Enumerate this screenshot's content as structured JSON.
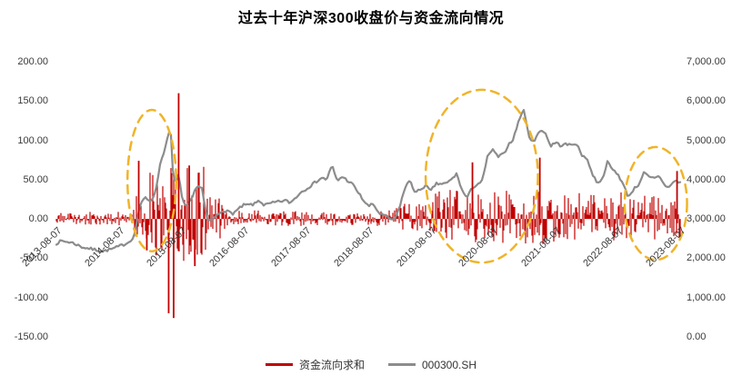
{
  "chart": {
    "title": "过去十年沪深300收盘价与资金流向情况"
  },
  "chart_data": {
    "type": "line",
    "title": "过去十年沪深300收盘价与资金流向情况",
    "subtitle": "",
    "grid": false,
    "legend_position": "bottom",
    "x_tick_labels": [
      "2013-08-07",
      "2014-08-07",
      "2015-08-07",
      "2016-08-07",
      "2017-08-07",
      "2018-08-07",
      "2019-08-07",
      "2020-08-07",
      "2021-08-07",
      "2022-08-07",
      "2023-08-07"
    ],
    "left_axis": {
      "min": -150,
      "max": 200,
      "tick_values": [
        200,
        150,
        100,
        50,
        0,
        -50,
        -100,
        -150
      ],
      "tick_labels": [
        "200.00",
        "150.00",
        "100.00",
        "50.00",
        "0.00",
        "-50.00",
        "-100.00",
        "-150.00"
      ]
    },
    "right_axis": {
      "min": 0,
      "max": 7000,
      "tick_values": [
        7000,
        6000,
        5000,
        4000,
        3000,
        2000,
        1000,
        0
      ],
      "tick_labels": [
        "7,000.00",
        "6,000.00",
        "5,000.00",
        "4,000.00",
        "3,000.00",
        "2,000.00",
        "1,000.00",
        "0.00"
      ]
    },
    "series": [
      {
        "name": "资金流向求和",
        "type": "bar",
        "axis": "left",
        "color": "#C00000",
        "noise_seed": 42,
        "envelope_segments": [
          [
            0.0,
            0.12,
            9,
            8
          ],
          [
            0.12,
            0.15,
            35,
            25
          ],
          [
            0.15,
            0.24,
            70,
            55
          ],
          [
            0.24,
            0.27,
            32,
            28
          ],
          [
            0.27,
            0.545,
            11,
            9
          ],
          [
            0.545,
            0.6,
            20,
            16
          ],
          [
            0.6,
            0.7,
            38,
            30
          ],
          [
            0.7,
            0.78,
            36,
            32
          ],
          [
            0.78,
            0.93,
            34,
            30
          ],
          [
            0.93,
            1.0,
            30,
            26
          ]
        ],
        "spikes": [
          [
            0.132,
            74
          ],
          [
            0.145,
            -40
          ],
          [
            0.18,
            -120
          ],
          [
            0.188,
            -126
          ],
          [
            0.196,
            160
          ],
          [
            0.213,
            68
          ],
          [
            0.222,
            -60
          ],
          [
            0.667,
            72
          ],
          [
            0.775,
            78
          ],
          [
            0.995,
            61
          ]
        ]
      },
      {
        "name": "000300.SH",
        "type": "line",
        "axis": "right",
        "color": "#8C8C8C",
        "noise_seed": 7,
        "jitter": 35,
        "anchors": [
          [
            0.0,
            2380
          ],
          [
            0.008,
            2440
          ],
          [
            0.025,
            2400
          ],
          [
            0.042,
            2280
          ],
          [
            0.058,
            2230
          ],
          [
            0.075,
            2180
          ],
          [
            0.092,
            2250
          ],
          [
            0.108,
            2350
          ],
          [
            0.117,
            2420
          ],
          [
            0.125,
            2580
          ],
          [
            0.133,
            3300
          ],
          [
            0.142,
            3550
          ],
          [
            0.15,
            3460
          ],
          [
            0.158,
            3620
          ],
          [
            0.167,
            4450
          ],
          [
            0.175,
            4840
          ],
          [
            0.183,
            5350
          ],
          [
            0.186,
            4300
          ],
          [
            0.19,
            3900
          ],
          [
            0.196,
            4150
          ],
          [
            0.202,
            3450
          ],
          [
            0.208,
            3300
          ],
          [
            0.217,
            3500
          ],
          [
            0.225,
            3850
          ],
          [
            0.233,
            3800
          ],
          [
            0.242,
            2950
          ],
          [
            0.25,
            2980
          ],
          [
            0.267,
            3230
          ],
          [
            0.283,
            3140
          ],
          [
            0.3,
            3350
          ],
          [
            0.317,
            3370
          ],
          [
            0.325,
            3480
          ],
          [
            0.333,
            3350
          ],
          [
            0.35,
            3420
          ],
          [
            0.367,
            3470
          ],
          [
            0.375,
            3410
          ],
          [
            0.392,
            3680
          ],
          [
            0.408,
            3850
          ],
          [
            0.425,
            4050
          ],
          [
            0.433,
            4000
          ],
          [
            0.442,
            4360
          ],
          [
            0.45,
            3960
          ],
          [
            0.458,
            4080
          ],
          [
            0.475,
            3880
          ],
          [
            0.492,
            3480
          ],
          [
            0.5,
            3320
          ],
          [
            0.508,
            3380
          ],
          [
            0.517,
            3150
          ],
          [
            0.533,
            3020
          ],
          [
            0.542,
            2960
          ],
          [
            0.55,
            3300
          ],
          [
            0.558,
            3750
          ],
          [
            0.567,
            4010
          ],
          [
            0.575,
            3650
          ],
          [
            0.583,
            3750
          ],
          [
            0.592,
            3850
          ],
          [
            0.6,
            3700
          ],
          [
            0.608,
            3890
          ],
          [
            0.625,
            3900
          ],
          [
            0.633,
            4000
          ],
          [
            0.642,
            4150
          ],
          [
            0.65,
            3740
          ],
          [
            0.658,
            3530
          ],
          [
            0.667,
            3800
          ],
          [
            0.683,
            3970
          ],
          [
            0.692,
            4650
          ],
          [
            0.7,
            4750
          ],
          [
            0.708,
            4580
          ],
          [
            0.717,
            4650
          ],
          [
            0.725,
            4900
          ],
          [
            0.733,
            5050
          ],
          [
            0.742,
            5550
          ],
          [
            0.75,
            5780
          ],
          [
            0.758,
            5050
          ],
          [
            0.767,
            5000
          ],
          [
            0.775,
            5250
          ],
          [
            0.783,
            5230
          ],
          [
            0.792,
            4850
          ],
          [
            0.8,
            4950
          ],
          [
            0.808,
            4870
          ],
          [
            0.817,
            4900
          ],
          [
            0.825,
            4880
          ],
          [
            0.833,
            4940
          ],
          [
            0.842,
            4620
          ],
          [
            0.85,
            4570
          ],
          [
            0.858,
            4180
          ],
          [
            0.867,
            3930
          ],
          [
            0.875,
            4000
          ],
          [
            0.883,
            4450
          ],
          [
            0.892,
            4250
          ],
          [
            0.9,
            4150
          ],
          [
            0.908,
            3900
          ],
          [
            0.917,
            3560
          ],
          [
            0.925,
            3750
          ],
          [
            0.933,
            3870
          ],
          [
            0.942,
            4180
          ],
          [
            0.95,
            4060
          ],
          [
            0.958,
            4030
          ],
          [
            0.967,
            4090
          ],
          [
            0.975,
            3850
          ],
          [
            0.983,
            3820
          ],
          [
            0.992,
            3980
          ],
          [
            1.0,
            3920
          ]
        ]
      }
    ],
    "annotations": {
      "color": "#F0B429",
      "dash": [
        9,
        7
      ],
      "stroke_width": 2.5,
      "ellipses": [
        {
          "fx": 0.153,
          "fy": 0.432,
          "frx": 0.039,
          "fry": 0.257
        },
        {
          "fx": 0.682,
          "fy": 0.416,
          "frx": 0.09,
          "fry": 0.314
        },
        {
          "fx": 0.961,
          "fy": 0.515,
          "frx": 0.05,
          "fry": 0.205
        }
      ]
    }
  }
}
